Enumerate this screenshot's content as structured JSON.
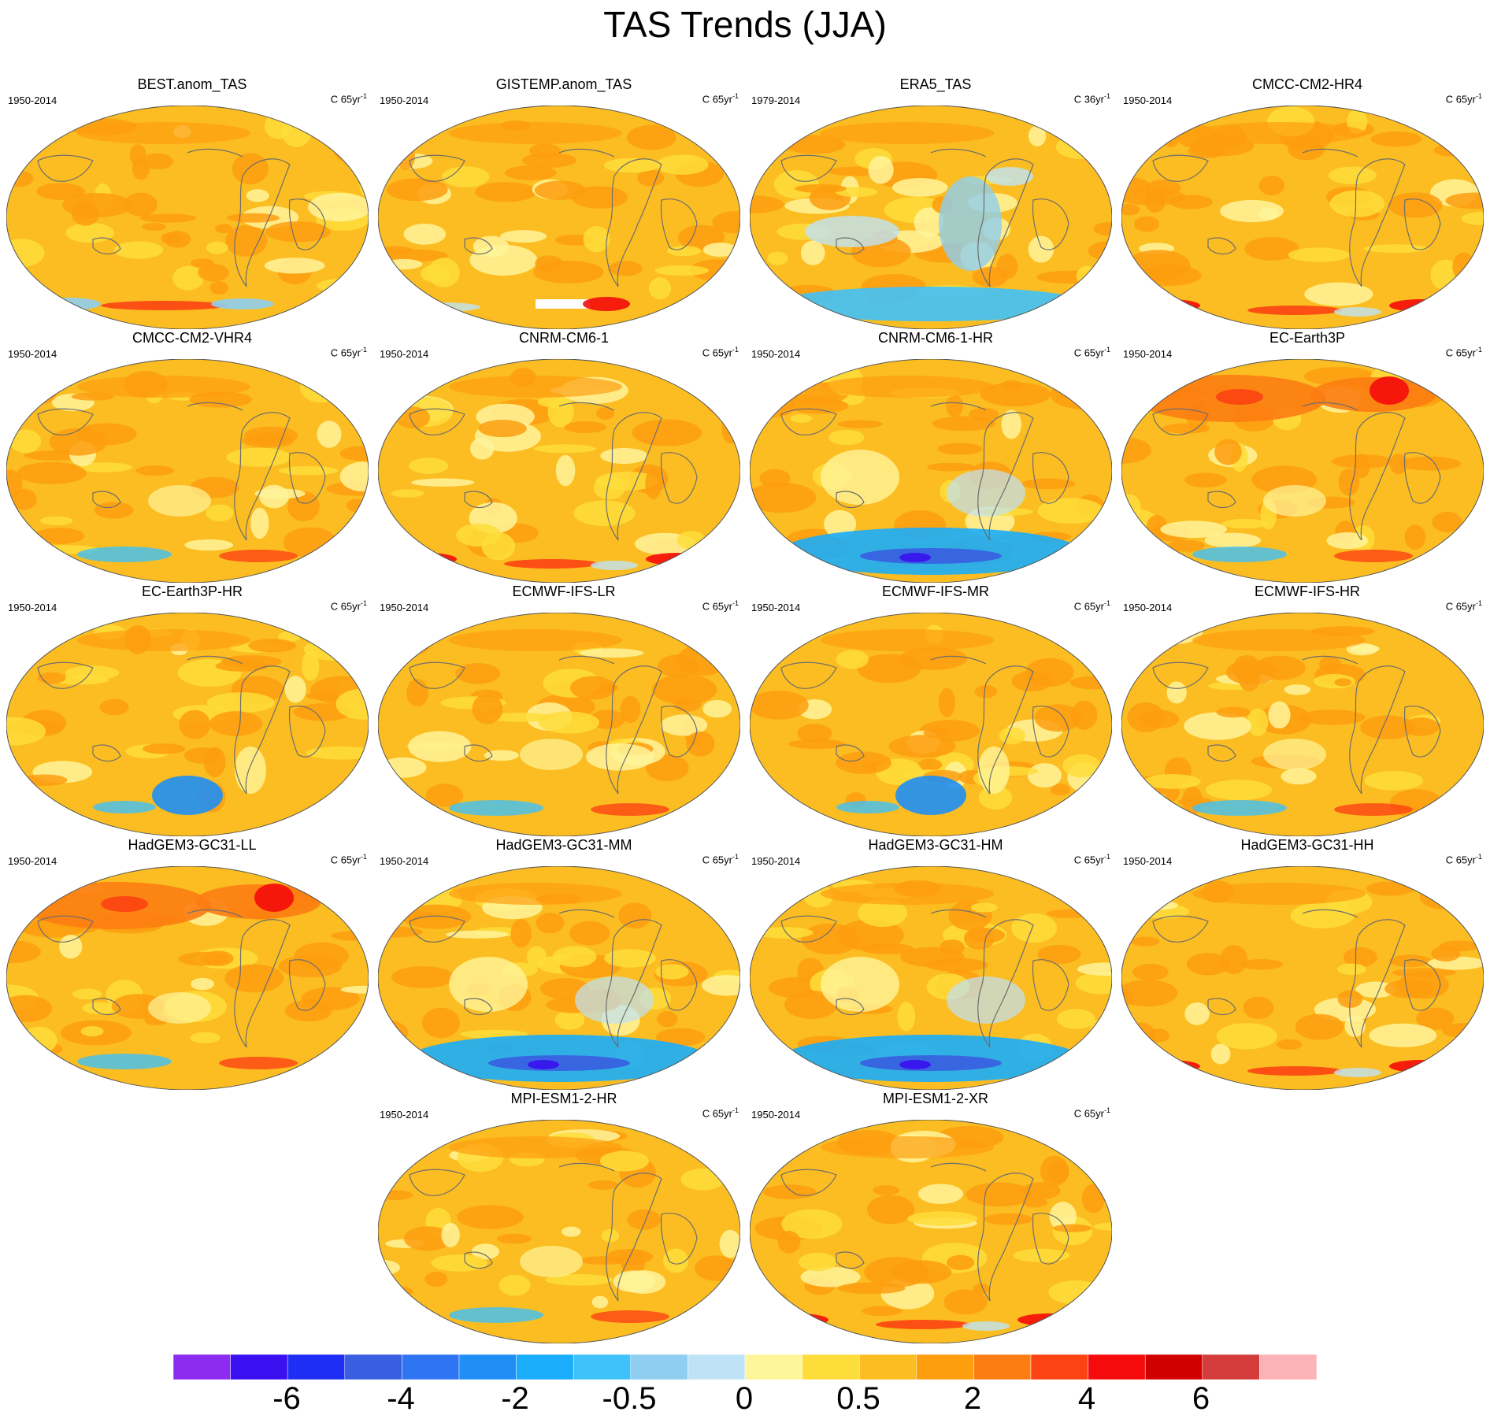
{
  "title": "TAS Trends (JJA)",
  "panels": [
    {
      "name": "BEST.anom_TAS",
      "period": "1950-2014",
      "units": "C 65yr",
      "exp": "-1",
      "pattern": "obs-best"
    },
    {
      "name": "GISTEMP.anom_TAS",
      "period": "1950-2014",
      "units": "C 65yr",
      "exp": "-1",
      "pattern": "obs-gistemp"
    },
    {
      "name": "ERA5_TAS",
      "period": "1979-2014",
      "units": "C 36yr",
      "exp": "-1",
      "pattern": "era5"
    },
    {
      "name": "CMCC-CM2-HR4",
      "period": "1950-2014",
      "units": "C 65yr",
      "exp": "-1",
      "pattern": "warm-south-red"
    },
    {
      "name": "CMCC-CM2-VHR4",
      "period": "1950-2014",
      "units": "C 65yr",
      "exp": "-1",
      "pattern": "warm-mixed"
    },
    {
      "name": "CNRM-CM6-1",
      "period": "1950-2014",
      "units": "C 65yr",
      "exp": "-1",
      "pattern": "warm-south-red"
    },
    {
      "name": "CNRM-CM6-1-HR",
      "period": "1950-2014",
      "units": "C 65yr",
      "exp": "-1",
      "pattern": "cool-south"
    },
    {
      "name": "EC-Earth3P",
      "period": "1950-2014",
      "units": "C 65yr",
      "exp": "-1",
      "pattern": "hot-north"
    },
    {
      "name": "EC-Earth3P-HR",
      "period": "1950-2014",
      "units": "C 65yr",
      "exp": "-1",
      "pattern": "warm-blue-blob"
    },
    {
      "name": "ECMWF-IFS-LR",
      "period": "1950-2014",
      "units": "C 65yr",
      "exp": "-1",
      "pattern": "warm-mixed"
    },
    {
      "name": "ECMWF-IFS-MR",
      "period": "1950-2014",
      "units": "C 65yr",
      "exp": "-1",
      "pattern": "warm-blue-blob"
    },
    {
      "name": "ECMWF-IFS-HR",
      "period": "1950-2014",
      "units": "C 65yr",
      "exp": "-1",
      "pattern": "warm-mixed"
    },
    {
      "name": "HadGEM3-GC31-LL",
      "period": "1950-2014",
      "units": "C 65yr",
      "exp": "-1",
      "pattern": "hot-north"
    },
    {
      "name": "HadGEM3-GC31-MM",
      "period": "1950-2014",
      "units": "C 65yr",
      "exp": "-1",
      "pattern": "cool-south"
    },
    {
      "name": "HadGEM3-GC31-HM",
      "period": "1950-2014",
      "units": "C 65yr",
      "exp": "-1",
      "pattern": "cool-south"
    },
    {
      "name": "HadGEM3-GC31-HH",
      "period": "1950-2014",
      "units": "C 65yr",
      "exp": "-1",
      "pattern": "warm-south-red"
    },
    {
      "name": "MPI-ESM1-2-HR",
      "period": "1950-2014",
      "units": "C 65yr",
      "exp": "-1",
      "pattern": "warm-mixed"
    },
    {
      "name": "MPI-ESM1-2-XR",
      "period": "1950-2014",
      "units": "C 65yr",
      "exp": "-1",
      "pattern": "warm-south-red"
    }
  ],
  "colorbar": {
    "colors": [
      "#8b2cf0",
      "#3a10f0",
      "#1e2ef5",
      "#3a5ee0",
      "#2f74f2",
      "#1f8ff5",
      "#1aadfb",
      "#3fc1f9",
      "#8fcef0",
      "#bfe3f6",
      "#fff59a",
      "#fedd3a",
      "#fbbd21",
      "#fd9e0f",
      "#fc7d12",
      "#fc4313",
      "#f50b0b",
      "#d00000",
      "#d43c3c",
      "#fcb3b8"
    ],
    "labels": [
      "-6",
      "-4",
      "-2",
      "-0.5",
      "0",
      "0.5",
      "2",
      "4",
      "6"
    ]
  }
}
